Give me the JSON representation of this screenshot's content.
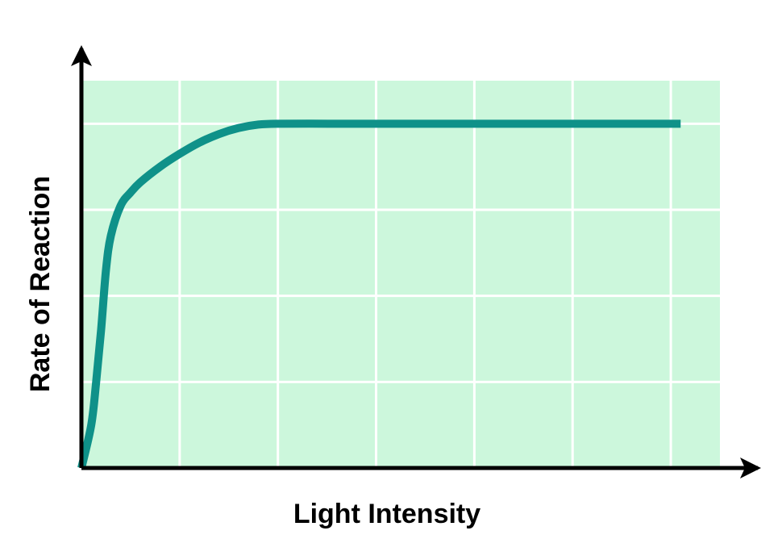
{
  "chart_data": {
    "type": "line",
    "title": "",
    "xlabel": "Light Intensity",
    "ylabel": "Rate of Reaction",
    "xlim": [
      0,
      6.5
    ],
    "ylim": [
      0,
      4.5
    ],
    "grid": true,
    "tick_labels": false,
    "series": [
      {
        "x": [
          0,
          0.1,
          0.15,
          0.2,
          0.25,
          0.3,
          0.4,
          0.5,
          0.6,
          0.8,
          1.0,
          1.2,
          1.4,
          1.6,
          1.8,
          2.0,
          2.5,
          3.0,
          4.0,
          5.0,
          6.1
        ],
        "values": [
          0,
          0.5,
          1.0,
          1.6,
          2.3,
          2.7,
          3.05,
          3.2,
          3.32,
          3.5,
          3.65,
          3.78,
          3.88,
          3.95,
          3.99,
          4.0,
          4.0,
          4.0,
          4.0,
          4.0,
          4.0
        ]
      }
    ]
  },
  "colors": {
    "plot_background": "#ccf7dc",
    "grid": "#ffffff",
    "curve": "#0f9189",
    "axes": "#000000"
  }
}
